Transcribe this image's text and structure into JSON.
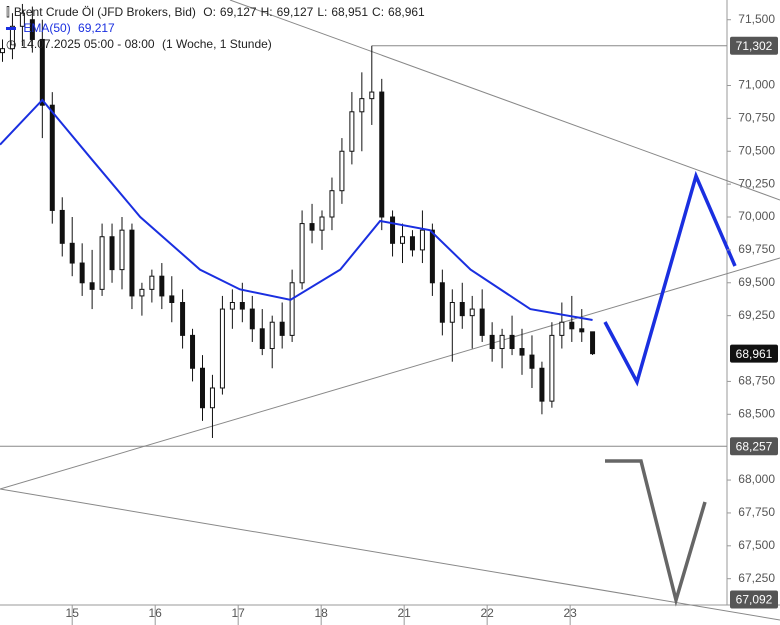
{
  "chart_data": {
    "type": "candlestick",
    "title": "Brent Crude Öl (JFD Brokers, Bid)",
    "ohlc_legend": [
      {
        "key": "O:",
        "value": 69.127,
        "label": "69,127"
      },
      {
        "key": "H:",
        "value": 69.127,
        "label": "69,127"
      },
      {
        "key": "L:",
        "value": 68.951,
        "label": "68,951"
      },
      {
        "key": "C:",
        "value": 68.961,
        "label": "68,961"
      }
    ],
    "period": "14.07.2025 05:00 - 08:00",
    "interval": "(1 Woche, 1 Stunde)",
    "color": "#111111",
    "x": [
      0.16,
      0.28,
      0.4,
      0.52,
      0.64,
      0.76,
      0.88,
      1.0,
      1.12,
      1.24,
      1.36,
      1.48,
      1.6,
      1.72,
      1.84,
      1.96,
      2.08,
      2.2,
      2.33,
      2.45,
      2.57,
      2.69,
      2.81,
      2.93,
      3.05,
      3.17,
      3.29,
      3.41,
      3.53,
      3.65,
      3.77,
      3.89,
      4.01,
      4.13,
      4.25,
      4.37,
      4.49,
      4.61,
      4.73,
      4.86,
      4.98,
      5.1,
      5.22,
      5.34,
      5.46,
      5.58,
      5.7,
      5.82,
      5.94,
      6.06,
      6.18,
      6.3,
      6.42,
      6.54,
      6.66,
      6.78,
      6.9,
      7.02,
      7.14,
      7.27
    ],
    "open": [
      71.25,
      71.28,
      71.45,
      71.5,
      71.35,
      70.85,
      70.05,
      69.8,
      69.65,
      69.5,
      69.45,
      69.85,
      69.6,
      69.9,
      69.4,
      69.45,
      69.55,
      69.4,
      69.35,
      69.1,
      68.85,
      68.55,
      68.7,
      69.3,
      69.35,
      69.3,
      69.15,
      69.0,
      69.2,
      69.1,
      69.5,
      69.95,
      69.9,
      70.0,
      70.2,
      70.5,
      70.8,
      70.9,
      70.95,
      70.0,
      69.8,
      69.85,
      69.75,
      69.9,
      69.5,
      69.2,
      69.35,
      69.25,
      69.3,
      69.1,
      69.0,
      69.1,
      69.0,
      68.95,
      68.85,
      68.6,
      69.1,
      69.2,
      69.15,
      69.127
    ],
    "high": [
      71.35,
      71.55,
      71.62,
      71.6,
      71.5,
      70.95,
      70.15,
      70.0,
      69.8,
      69.75,
      69.95,
      69.95,
      70.0,
      69.95,
      69.5,
      69.6,
      69.65,
      69.55,
      69.45,
      69.15,
      68.95,
      68.8,
      69.4,
      69.45,
      69.5,
      69.4,
      69.3,
      69.25,
      69.35,
      69.6,
      70.05,
      70.1,
      70.05,
      70.3,
      70.6,
      70.95,
      71.1,
      71.302,
      71.05,
      70.05,
      69.95,
      69.9,
      70.05,
      69.95,
      69.6,
      69.45,
      69.5,
      69.4,
      69.45,
      69.2,
      69.15,
      69.25,
      69.15,
      69.1,
      68.9,
      69.2,
      69.35,
      69.4,
      69.3,
      69.127
    ],
    "low": [
      71.18,
      71.2,
      71.3,
      71.25,
      70.6,
      69.95,
      69.7,
      69.55,
      69.4,
      69.3,
      69.4,
      69.5,
      69.45,
      69.3,
      69.25,
      69.35,
      69.3,
      69.2,
      69.0,
      68.75,
      68.45,
      68.32,
      68.65,
      69.15,
      69.2,
      69.05,
      68.95,
      68.85,
      69.0,
      69.05,
      69.45,
      69.8,
      69.75,
      69.9,
      70.1,
      70.4,
      70.5,
      70.7,
      69.9,
      69.7,
      69.65,
      69.7,
      69.65,
      69.4,
      69.1,
      68.9,
      69.15,
      69.0,
      69.05,
      68.9,
      68.85,
      68.95,
      68.8,
      68.7,
      68.5,
      68.55,
      69.0,
      69.05,
      69.05,
      68.951
    ],
    "close": [
      71.28,
      71.45,
      71.55,
      71.35,
      70.85,
      70.05,
      69.8,
      69.65,
      69.5,
      69.45,
      69.85,
      69.6,
      69.9,
      69.4,
      69.45,
      69.55,
      69.4,
      69.35,
      69.1,
      68.85,
      68.55,
      68.7,
      69.3,
      69.35,
      69.3,
      69.15,
      69.0,
      69.2,
      69.1,
      69.5,
      69.95,
      69.9,
      70.0,
      70.2,
      70.5,
      70.8,
      70.9,
      70.95,
      70.0,
      69.8,
      69.85,
      69.75,
      69.9,
      69.5,
      69.2,
      69.35,
      69.25,
      69.3,
      69.1,
      69.0,
      69.1,
      69.0,
      68.95,
      68.85,
      68.6,
      69.1,
      69.2,
      69.15,
      69.127,
      68.961
    ],
    "overlays": [
      {
        "name": "EMA(50)",
        "color": "#1a2fe0",
        "last_label": "69,217",
        "x": [
          0.13,
          0.64,
          1.22,
          1.82,
          2.54,
          3.02,
          3.63,
          4.23,
          4.71,
          5.31,
          5.8,
          6.52,
          7.27
        ],
        "values": [
          70.55,
          70.89,
          70.45,
          70.0,
          69.6,
          69.45,
          69.37,
          69.6,
          69.97,
          69.9,
          69.6,
          69.3,
          69.217
        ]
      }
    ],
    "levels": [
      {
        "value": 71.302,
        "label": "71,302",
        "from": 4.61
      },
      {
        "value": 68.257,
        "label": "68,257",
        "from": 0.13
      },
      {
        "value": 67.092,
        "label": "67,092"
      }
    ],
    "last_price": {
      "value": 68.961,
      "label": "68,961"
    },
    "xlim": [
      0.13,
      8.89
    ],
    "ylim": [
      67.05,
      71.65
    ],
    "xticks": [
      {
        "value": 1,
        "label": "15"
      },
      {
        "value": 2,
        "label": "16"
      },
      {
        "value": 3,
        "label": "17"
      },
      {
        "value": 4,
        "label": "18"
      },
      {
        "value": 5,
        "label": "21"
      },
      {
        "value": 6,
        "label": "22"
      },
      {
        "value": 7,
        "label": "23"
      }
    ],
    "yticks": [
      {
        "value": 71.5,
        "label": "71,500"
      },
      {
        "value": 71.0,
        "label": "71,000"
      },
      {
        "value": 70.75,
        "label": "70,750"
      },
      {
        "value": 70.5,
        "label": "70,500"
      },
      {
        "value": 70.25,
        "label": "70,250"
      },
      {
        "value": 70.0,
        "label": "70,000"
      },
      {
        "value": 69.75,
        "label": "69,750"
      },
      {
        "value": 69.5,
        "label": "69,500"
      },
      {
        "value": 69.25,
        "label": "69,250"
      },
      {
        "value": 68.75,
        "label": "68,750"
      },
      {
        "value": 68.5,
        "label": "68,500"
      },
      {
        "value": 68.0,
        "label": "68,000"
      },
      {
        "value": 67.75,
        "label": "67,750"
      },
      {
        "value": 67.5,
        "label": "67,500"
      },
      {
        "value": 67.25,
        "label": "67,250"
      }
    ]
  }
}
